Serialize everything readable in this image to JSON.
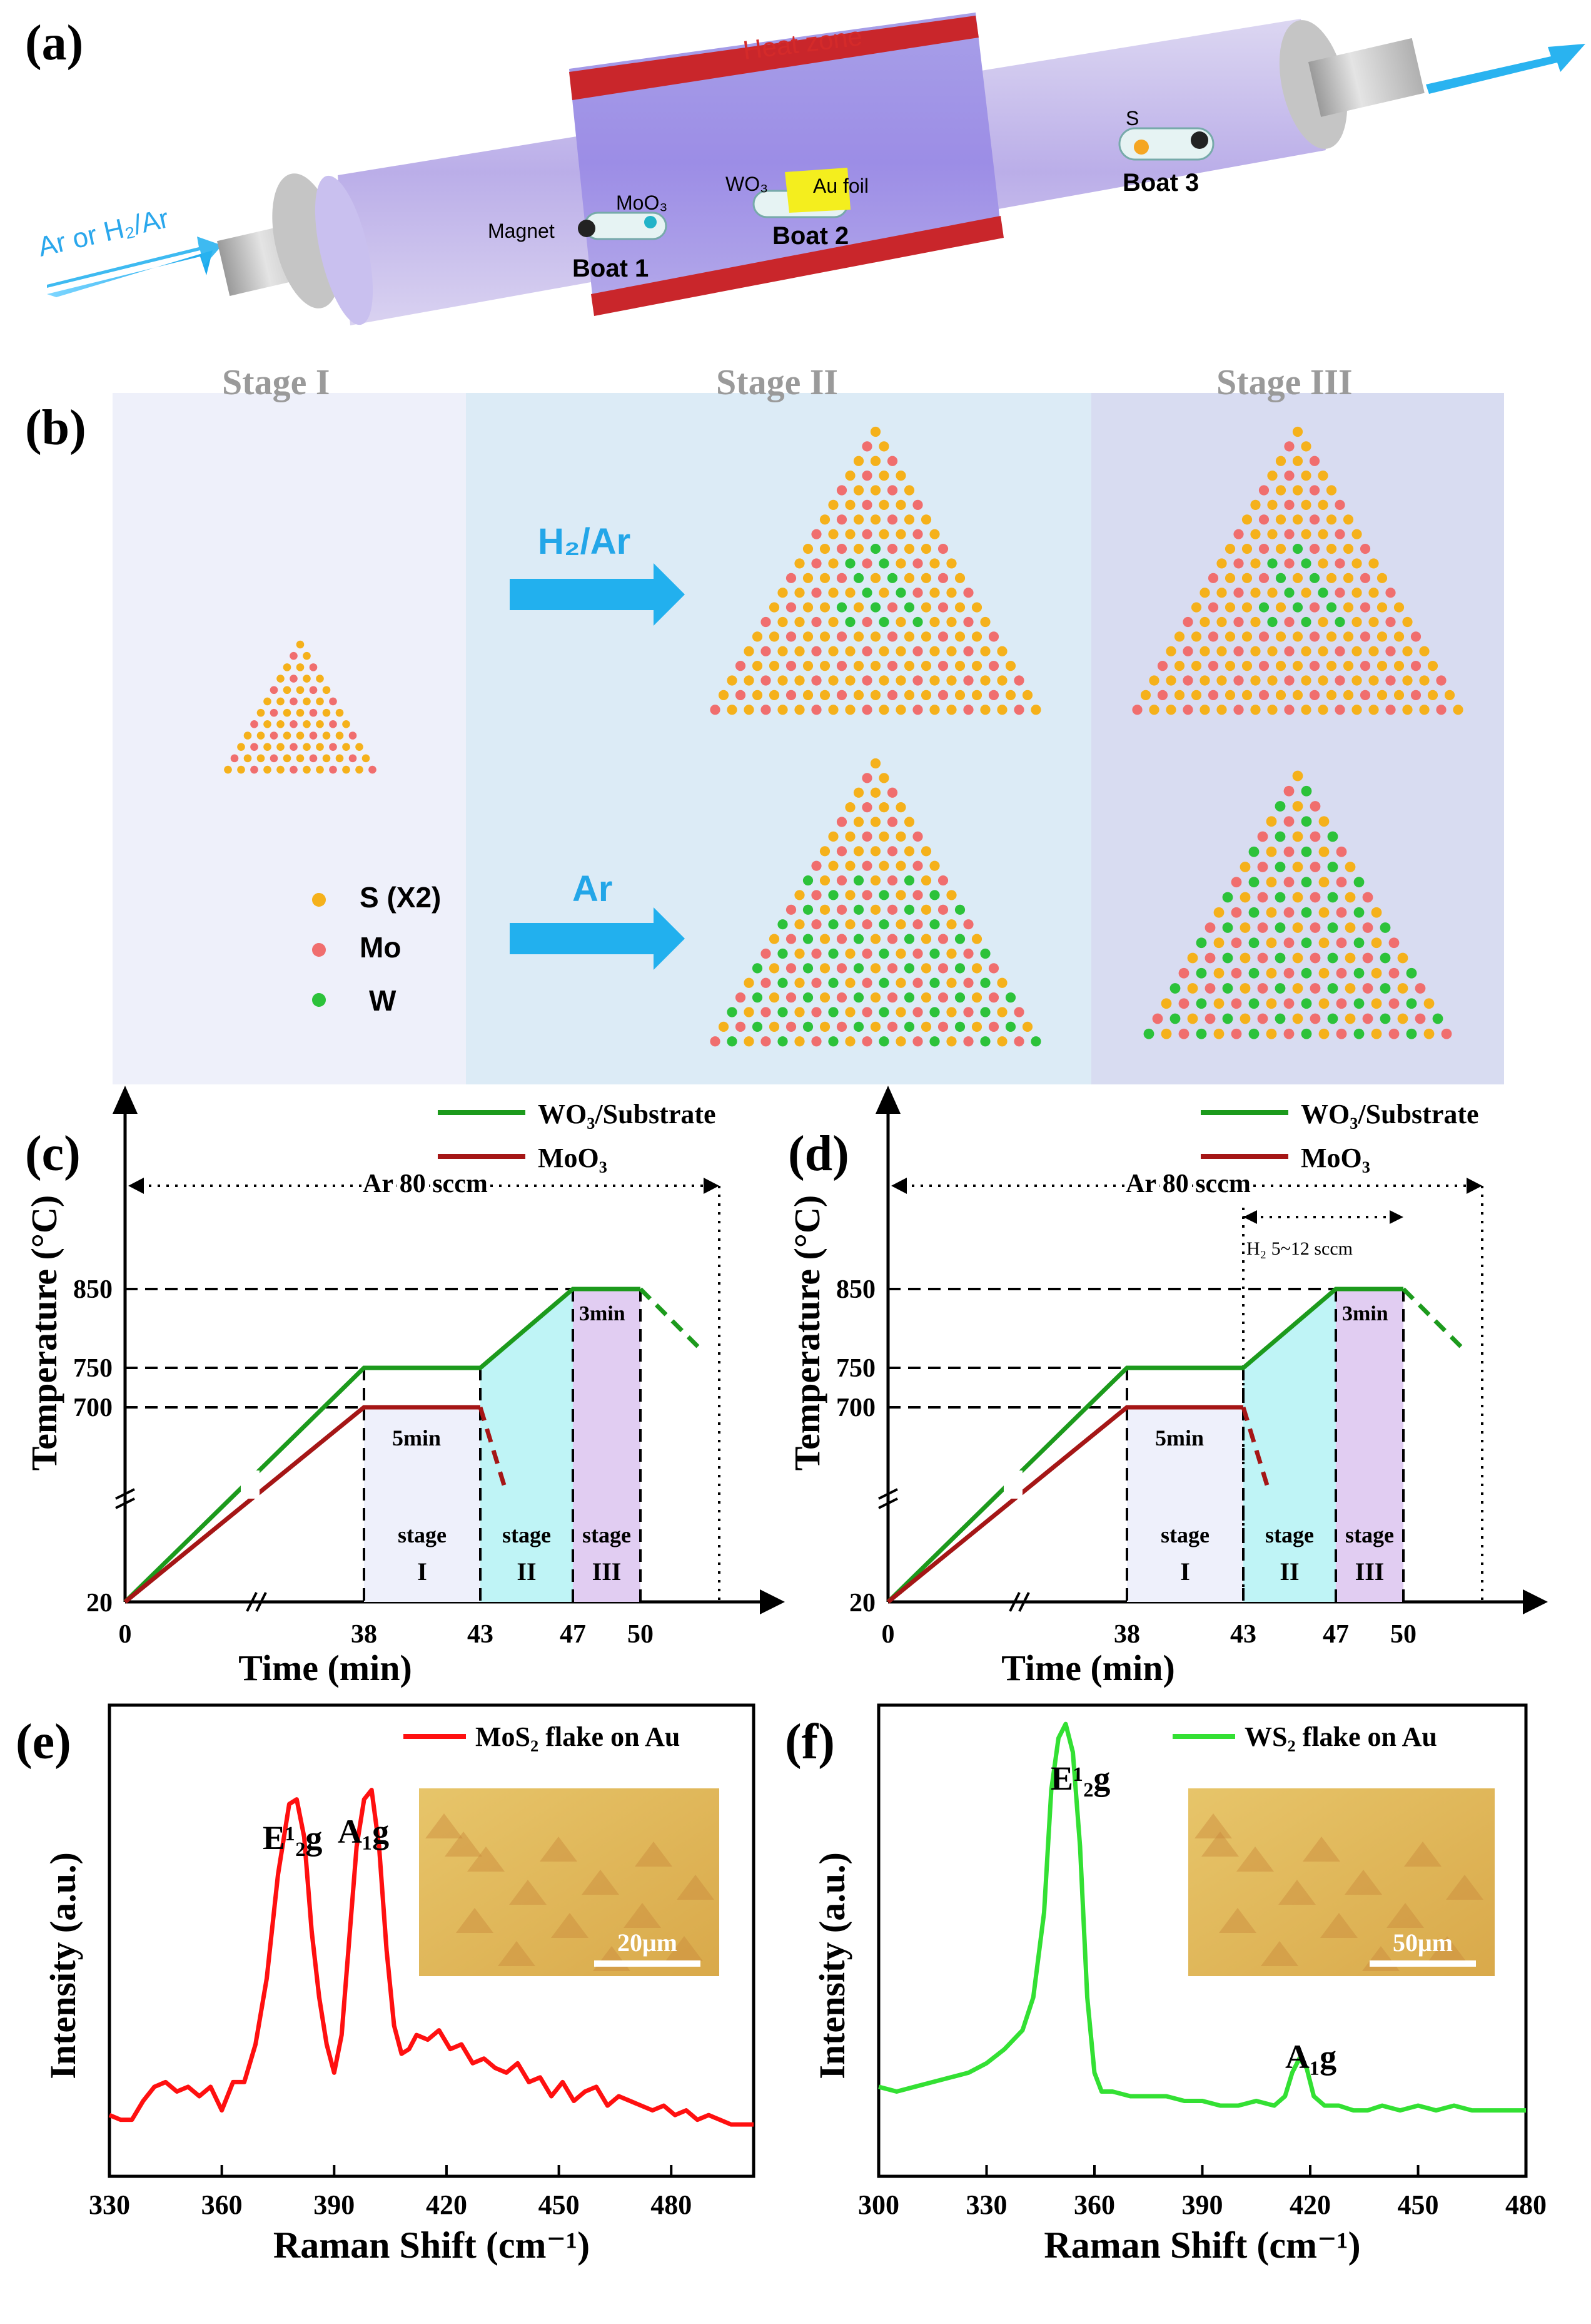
{
  "panels": {
    "a": {
      "label": "(a)",
      "heat_zone": "Heat zone",
      "gas_in": "Ar or H₂/Ar",
      "magnet": "Magnet",
      "moo3": "MoO₃",
      "wo3": "WO₃",
      "au_foil": "Au foil",
      "s": "S",
      "boat1": "Boat 1",
      "boat2": "Boat 2",
      "boat3": "Boat 3"
    },
    "b": {
      "label": "(b)",
      "stage1": "Stage I",
      "stage2": "Stage II",
      "stage3": "Stage III",
      "arrow_top": "H₂/Ar",
      "arrow_bottom": "Ar",
      "legend": [
        "S (X2)",
        "Mo",
        "W"
      ],
      "colors": {
        "S": "#f5b11b",
        "Mo": "#f06e6e",
        "W": "#2cc23a"
      }
    },
    "c": {
      "label": "(c)",
      "legend_wo3": "WO₃/Substrate",
      "legend_moo3": "MoO₃",
      "gas": "Ar 80 sccm",
      "hold": "5min",
      "hold2": "3min",
      "ylabel": "Temperature (°C)",
      "xlabel": "Time (min)",
      "stages": [
        "stage I",
        "stage II",
        "stage III"
      ]
    },
    "d": {
      "label": "(d)",
      "legend_wo3": "WO₃/Substrate",
      "legend_moo3": "MoO₃",
      "gas": "Ar 80 sccm",
      "h2": "H₂ 5~12 sccm",
      "hold": "5min",
      "hold2": "3min",
      "ylabel": "Temperature (°C)",
      "xlabel": "Time (min)",
      "stages": [
        "stage I",
        "stage II",
        "stage III"
      ]
    },
    "e": {
      "label": "(e)",
      "legend": "MoS₂ flake on Au",
      "peak1": "E¹₂g",
      "peak2": "A₁g",
      "scale": "20μm",
      "ylabel": "Intensity (a.u.)",
      "xlabel": "Raman Shift (cm⁻¹)"
    },
    "f": {
      "label": "(f)",
      "legend": "WS₂ flake on Au",
      "peak1": "E¹₂g",
      "peak2": "A₁g",
      "scale": "50μm",
      "ylabel": "Intensity (a.u.)",
      "xlabel": "Raman Shift (cm⁻¹)"
    }
  },
  "chart_data": [
    {
      "type": "line",
      "title": "(c)",
      "xlabel": "Time (min)",
      "ylabel": "Temperature (°C)",
      "xticks": [
        "0",
        "38",
        "43",
        "47",
        "50"
      ],
      "yticks": [
        "20",
        "700",
        "750",
        "850"
      ],
      "series": [
        {
          "name": "WO₃/Substrate",
          "color": "#1c9a1c",
          "x": [
            0,
            38,
            43,
            47,
            50
          ],
          "y": [
            20,
            750,
            750,
            850,
            850
          ]
        },
        {
          "name": "MoO₃",
          "color": "#a51616",
          "x": [
            0,
            38,
            43
          ],
          "y": [
            20,
            700,
            700
          ]
        }
      ]
    },
    {
      "type": "line",
      "title": "(d)",
      "xlabel": "Time (min)",
      "ylabel": "Temperature (°C)",
      "xticks": [
        "0",
        "38",
        "43",
        "47",
        "50"
      ],
      "yticks": [
        "20",
        "700",
        "750",
        "850"
      ],
      "series": [
        {
          "name": "WO₃/Substrate",
          "color": "#1c9a1c",
          "x": [
            0,
            38,
            43,
            47,
            50
          ],
          "y": [
            20,
            750,
            750,
            850,
            850
          ]
        },
        {
          "name": "MoO₃",
          "color": "#a51616",
          "x": [
            0,
            38,
            43
          ],
          "y": [
            20,
            700,
            700
          ]
        }
      ]
    },
    {
      "type": "line",
      "title": "(e)",
      "xlabel": "Raman Shift (cm⁻¹)",
      "ylabel": "Intensity (a.u.)",
      "xlim": [
        330,
        502
      ],
      "xticks": [
        "330",
        "360",
        "390",
        "420",
        "450",
        "480"
      ],
      "series": [
        {
          "name": "MoS₂ flake on Au",
          "color": "#ff1010",
          "x": [
            330,
            333,
            336,
            339,
            342,
            345,
            348,
            351,
            354,
            357,
            360,
            363,
            366,
            369,
            372,
            375,
            378,
            380,
            382,
            384,
            386,
            388,
            390,
            392,
            394,
            396,
            398,
            400,
            402,
            404,
            406,
            408,
            410,
            412,
            415,
            418,
            421,
            424,
            427,
            430,
            433,
            436,
            439,
            442,
            445,
            448,
            451,
            454,
            457,
            460,
            463,
            466,
            469,
            472,
            475,
            478,
            481,
            484,
            487,
            490,
            493,
            496,
            499,
            502
          ],
          "y": [
            0.13,
            0.12,
            0.12,
            0.16,
            0.19,
            0.2,
            0.18,
            0.19,
            0.17,
            0.19,
            0.14,
            0.2,
            0.2,
            0.28,
            0.42,
            0.64,
            0.79,
            0.8,
            0.72,
            0.52,
            0.38,
            0.28,
            0.22,
            0.3,
            0.5,
            0.7,
            0.8,
            0.82,
            0.7,
            0.48,
            0.32,
            0.26,
            0.27,
            0.3,
            0.29,
            0.31,
            0.27,
            0.28,
            0.24,
            0.25,
            0.23,
            0.22,
            0.24,
            0.2,
            0.21,
            0.17,
            0.2,
            0.16,
            0.18,
            0.19,
            0.15,
            0.17,
            0.16,
            0.15,
            0.14,
            0.15,
            0.13,
            0.14,
            0.12,
            0.13,
            0.12,
            0.11,
            0.11,
            0.11
          ]
        }
      ]
    },
    {
      "type": "line",
      "title": "(f)",
      "xlabel": "Raman Shift (cm⁻¹)",
      "ylabel": "Intensity (a.u.)",
      "xlim": [
        300,
        480
      ],
      "xticks": [
        "300",
        "330",
        "360",
        "390",
        "420",
        "450",
        "480"
      ],
      "series": [
        {
          "name": "WS₂ flake on Au",
          "color": "#33e033",
          "x": [
            300,
            305,
            310,
            315,
            320,
            325,
            330,
            335,
            340,
            343,
            346,
            348,
            350,
            352,
            354,
            356,
            358,
            360,
            362,
            365,
            370,
            375,
            380,
            385,
            390,
            395,
            400,
            405,
            410,
            413,
            415,
            417,
            419,
            421,
            424,
            428,
            432,
            436,
            440,
            445,
            450,
            455,
            460,
            465,
            470,
            475,
            480
          ],
          "y": [
            0.19,
            0.18,
            0.19,
            0.2,
            0.21,
            0.22,
            0.24,
            0.27,
            0.31,
            0.38,
            0.56,
            0.82,
            0.93,
            0.96,
            0.9,
            0.7,
            0.38,
            0.22,
            0.18,
            0.18,
            0.17,
            0.17,
            0.17,
            0.16,
            0.16,
            0.15,
            0.15,
            0.16,
            0.15,
            0.17,
            0.22,
            0.25,
            0.23,
            0.17,
            0.15,
            0.15,
            0.14,
            0.14,
            0.15,
            0.14,
            0.15,
            0.14,
            0.15,
            0.14,
            0.14,
            0.14,
            0.14
          ]
        }
      ]
    }
  ]
}
